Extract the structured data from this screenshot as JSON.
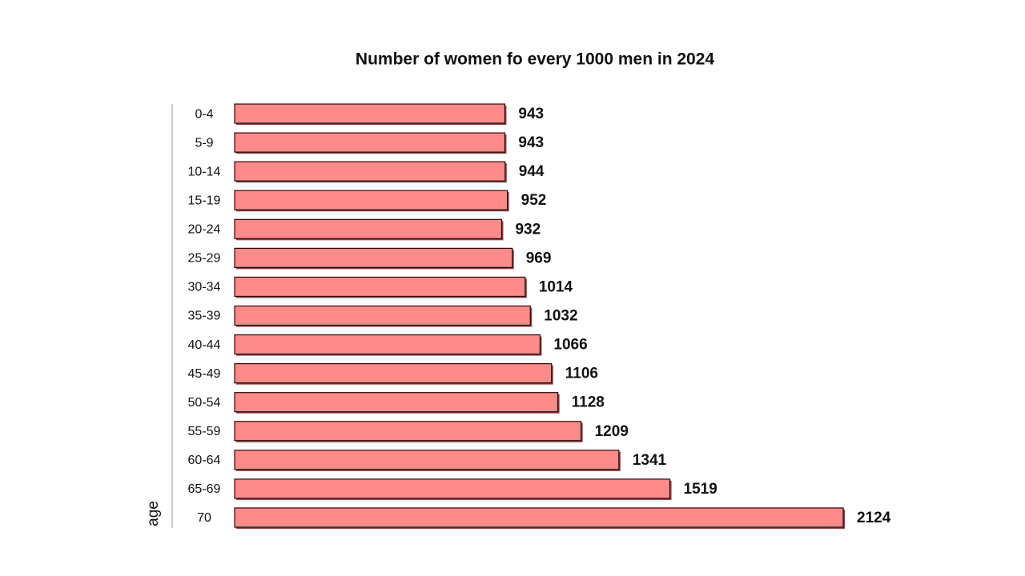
{
  "chart_data": {
    "type": "bar",
    "orientation": "horizontal",
    "title": "Number of women fo every 1000 men in 2024",
    "y_label": "age",
    "categories": [
      "0-4",
      "5-9",
      "10-14",
      "15-19",
      "20-24",
      "25-29",
      "30-34",
      "35-39",
      "40-44",
      "45-49",
      "50-54",
      "55-59",
      "60-64",
      "65-69",
      "70"
    ],
    "values": [
      943,
      943,
      944,
      952,
      932,
      969,
      1014,
      1032,
      1066,
      1106,
      1128,
      1209,
      1341,
      1519,
      2124
    ],
    "color": "#ff8a8a"
  }
}
